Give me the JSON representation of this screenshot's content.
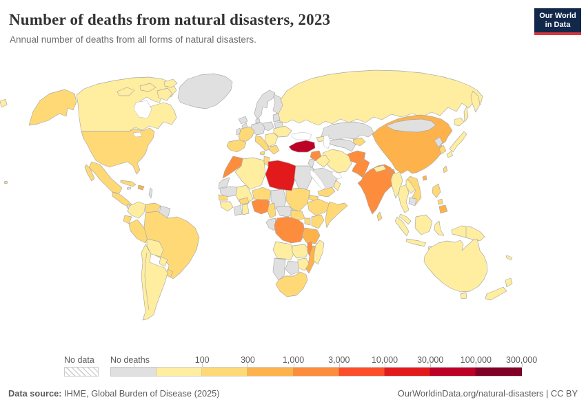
{
  "header": {
    "title": "Number of deaths from natural disasters, 2023",
    "subtitle": "Annual number of deaths from all forms of natural disasters."
  },
  "logo": {
    "line1": "Our World",
    "line2": "in Data",
    "bg": "#12284b",
    "accent": "#d7383d"
  },
  "footer": {
    "source_label": "Data source:",
    "source_rest": " IHME, Global Burden of Disease (2025)",
    "credit": "OurWorldinData.org/natural-disasters | CC BY"
  },
  "legend": {
    "no_data_label": "No data",
    "no_deaths_label": "No deaths",
    "no_deaths_color": "#e0e0e0",
    "bins": [
      {
        "label": "100",
        "color": "#ffeda0"
      },
      {
        "label": "300",
        "color": "#fed976"
      },
      {
        "label": "1,000",
        "color": "#feb24c"
      },
      {
        "label": "3,000",
        "color": "#fd8d3c"
      },
      {
        "label": "10,000",
        "color": "#fc4e2a"
      },
      {
        "label": "30,000",
        "color": "#e31a1c"
      },
      {
        "label": "100,000",
        "color": "#bd0026"
      },
      {
        "label": "300,000",
        "color": "#800026"
      }
    ]
  },
  "chart_data": {
    "type": "choropleth_map",
    "title": "Number of deaths from natural disasters, 2023",
    "unit": "deaths",
    "year": 2023,
    "legend_bins": [
      "No data",
      "No deaths",
      "<100",
      "100-300",
      "300-1,000",
      "1,000-3,000",
      "3,000-10,000",
      "10,000-30,000",
      "30,000-100,000",
      "100,000-300,000"
    ],
    "bin_colors": {
      "No deaths": "#e0e0e0",
      "<100": "#ffeda0",
      "100-300": "#fed976",
      "300-1,000": "#feb24c",
      "1,000-3,000": "#fd8d3c",
      "3,000-10,000": "#fc4e2a",
      "10,000-30,000": "#e31a1c",
      "30,000-100,000": "#bd0026",
      "100,000-300,000": "#800026"
    },
    "readings": {
      "30,000-100,000": [
        "Turkey"
      ],
      "10,000-30,000": [
        "Libya"
      ],
      "1,000-3,000": [
        "Morocco",
        "Syria",
        "Afghanistan",
        "Pakistan",
        "India",
        "Nigeria",
        "Democratic Republic of Congo",
        "Malawi",
        "Bhutan"
      ],
      "300-1,000": [
        "China",
        "Tanzania",
        "Mozambique",
        "Bangladesh",
        "Hispaniola",
        "Mindanao (Philippines)",
        "Hainan (China)"
      ],
      "100-300": [
        "United States",
        "Mexico",
        "Brazil",
        "Peru",
        "Ecuador",
        "Venezuela",
        "Uruguay",
        "Cuba",
        "Central America",
        "France",
        "Spain",
        "Italy",
        "Greece",
        "Niger",
        "Sudan",
        "Senegal",
        "Burkina Faso",
        "Cameroon",
        "Ethiopia",
        "Eritrea",
        "Somalia",
        "Kenya",
        "Uganda",
        "South Sudan",
        "South Africa",
        "Yemen",
        "Vietnam",
        "South Korea",
        "Philippines",
        "Sri Lanka",
        "Kyrgyzstan",
        "Tunisia",
        "Alaska (US)",
        "Taiwan"
      ],
      "<100": [
        "Canada",
        "Russia",
        "Ukraine",
        "Iran",
        "Iraq",
        "Oman",
        "Algeria",
        "Mali",
        "Guinea",
        "Ghana",
        "Angola",
        "Zambia",
        "Zimbabwe",
        "Madagascar",
        "Colombia",
        "Bolivia",
        "Paraguay",
        "Chile",
        "Argentina",
        "Myanmar",
        "Thailand",
        "Laos",
        "Malaysia",
        "Indonesia",
        "Japan",
        "Australia",
        "New Zealand",
        "Papua New Guinea",
        "Nepal",
        "Balkans",
        "Caucasus"
      ],
      "No deaths": [
        "Greenland",
        "Iceland",
        "United Kingdom",
        "Ireland",
        "Norway",
        "Sweden",
        "Finland",
        "Germany",
        "Poland",
        "Belarus",
        "Baltic states",
        "Kazakhstan",
        "Uzbekistan & Turkmenistan",
        "Mongolia",
        "North Korea",
        "Cambodia",
        "Saudi Arabia",
        "Egypt",
        "Jordan & Israel",
        "Chad",
        "Mauritania",
        "Western Sahara",
        "Cote d'Ivoire",
        "Central African Republic",
        "Congo & Gabon",
        "Namibia",
        "Botswana",
        "Guyanas",
        "Panama & Costa Rica",
        "Jamaica",
        "Lesser Antilles"
      ]
    }
  },
  "map": {
    "countries": [
      {
        "id": "russia",
        "name": "Russia",
        "color": "#ffeda0"
      },
      {
        "id": "kamchatka",
        "name": "Russia (Kamchatka)",
        "color": "#ffeda0"
      },
      {
        "id": "sakhalin",
        "name": "Russia (Sakhalin)",
        "color": "#ffeda0"
      },
      {
        "id": "chukotka_sliver",
        "name": "Russia (far east)",
        "color": "#ffeda0"
      },
      {
        "id": "kazakhstan",
        "name": "Kazakhstan",
        "color": "#e0e0e0"
      },
      {
        "id": "uzbek_turkmen",
        "name": "Uzbekistan / Turkmenistan",
        "color": "#e0e0e0"
      },
      {
        "id": "kyrgyz_tajik",
        "name": "Kyrgyzstan / Tajikistan",
        "color": "#fed976"
      },
      {
        "id": "caucasus",
        "name": "Caucasus",
        "color": "#ffeda0"
      },
      {
        "id": "china",
        "name": "China",
        "color": "#feb24c"
      },
      {
        "id": "mongolia",
        "name": "Mongolia",
        "color": "#e0e0e0"
      },
      {
        "id": "nkorea",
        "name": "North Korea",
        "color": "#e0e0e0"
      },
      {
        "id": "skorea",
        "name": "South Korea",
        "color": "#fed976"
      },
      {
        "id": "hokkaido",
        "name": "Japan (Hokkaido)",
        "color": "#ffeda0"
      },
      {
        "id": "honshu",
        "name": "Japan",
        "color": "#ffeda0"
      },
      {
        "id": "kyushu",
        "name": "Japan (Kyushu)",
        "color": "#ffeda0"
      },
      {
        "id": "taiwan",
        "name": "Taiwan",
        "color": "#fed976"
      },
      {
        "id": "hainan",
        "name": "China (Hainan)",
        "color": "#feb24c"
      },
      {
        "id": "india",
        "name": "India",
        "color": "#fd8d3c"
      },
      {
        "id": "nepal",
        "name": "Nepal",
        "color": "#ffeda0"
      },
      {
        "id": "bhutan",
        "name": "Bhutan",
        "color": "#fd8d3c"
      },
      {
        "id": "bangladesh",
        "name": "Bangladesh",
        "color": "#feb24c"
      },
      {
        "id": "srilanka",
        "name": "Sri Lanka",
        "color": "#fed976"
      },
      {
        "id": "pakistan",
        "name": "Pakistan",
        "color": "#fd8d3c"
      },
      {
        "id": "afghanistan",
        "name": "Afghanistan",
        "color": "#fd8d3c"
      },
      {
        "id": "iran",
        "name": "Iran",
        "color": "#ffeda0"
      },
      {
        "id": "iraq",
        "name": "Iraq",
        "color": "#ffeda0"
      },
      {
        "id": "syria",
        "name": "Syria",
        "color": "#fd8d3c"
      },
      {
        "id": "turkey",
        "name": "Turkey",
        "color": "#bd0026"
      },
      {
        "id": "levant",
        "name": "Jordan / Israel",
        "color": "#e0e0e0"
      },
      {
        "id": "saudi",
        "name": "Saudi Arabia",
        "color": "#e0e0e0"
      },
      {
        "id": "yemen",
        "name": "Yemen",
        "color": "#fed976"
      },
      {
        "id": "oman",
        "name": "Oman",
        "color": "#ffeda0"
      },
      {
        "id": "myanmar",
        "name": "Myanmar",
        "color": "#ffeda0"
      },
      {
        "id": "thailand",
        "name": "Thailand",
        "color": "#ffeda0"
      },
      {
        "id": "laos",
        "name": "Laos",
        "color": "#ffeda0"
      },
      {
        "id": "vietnam",
        "name": "Vietnam",
        "color": "#fed976"
      },
      {
        "id": "cambodia",
        "name": "Cambodia",
        "color": "#e0e0e0"
      },
      {
        "id": "malaysia",
        "name": "Malaysia",
        "color": "#ffeda0"
      },
      {
        "id": "borneo",
        "name": "Indonesia (Borneo)",
        "color": "#ffeda0"
      },
      {
        "id": "sumatra",
        "name": "Indonesia (Sumatra)",
        "color": "#ffeda0"
      },
      {
        "id": "java",
        "name": "Indonesia (Java)",
        "color": "#ffeda0"
      },
      {
        "id": "sulawesi",
        "name": "Indonesia (Sulawesi)",
        "color": "#ffeda0"
      },
      {
        "id": "lesser_sunda",
        "name": "Indonesia (Lesser Sunda)",
        "color": "#ffeda0"
      },
      {
        "id": "luzon",
        "name": "Philippines (Luzon)",
        "color": "#fed976"
      },
      {
        "id": "visayas",
        "name": "Philippines (Visayas)",
        "color": "#fed976"
      },
      {
        "id": "mindanao",
        "name": "Philippines (Mindanao)",
        "color": "#feb24c"
      },
      {
        "id": "newguinea",
        "name": "Papua New Guinea / Indonesia",
        "color": "#ffeda0"
      },
      {
        "id": "australia",
        "name": "Australia",
        "color": "#ffeda0"
      },
      {
        "id": "tasmania",
        "name": "Australia (Tasmania)",
        "color": "#ffeda0"
      },
      {
        "id": "nz_north",
        "name": "New Zealand (North Island)",
        "color": "#ffeda0"
      },
      {
        "id": "nz_south",
        "name": "New Zealand (South Island)",
        "color": "#ffeda0"
      },
      {
        "id": "newcaledonia",
        "name": "New Caledonia",
        "color": "#ffeda0"
      },
      {
        "id": "morocco",
        "name": "Morocco",
        "color": "#fd8d3c"
      },
      {
        "id": "wsahara",
        "name": "Western Sahara",
        "color": "#e0e0e0"
      },
      {
        "id": "mauritania",
        "name": "Mauritania",
        "color": "#e0e0e0"
      },
      {
        "id": "mali",
        "name": "Mali",
        "color": "#ffeda0"
      },
      {
        "id": "senegal",
        "name": "Senegal",
        "color": "#fed976"
      },
      {
        "id": "guinea",
        "name": "Guinea",
        "color": "#ffeda0"
      },
      {
        "id": "civ",
        "name": "Cote d'Ivoire",
        "color": "#e0e0e0"
      },
      {
        "id": "ghana",
        "name": "Ghana",
        "color": "#ffeda0"
      },
      {
        "id": "burkina",
        "name": "Burkina Faso",
        "color": "#fed976"
      },
      {
        "id": "nigeria",
        "name": "Nigeria",
        "color": "#fd8d3c"
      },
      {
        "id": "niger",
        "name": "Niger",
        "color": "#fed976"
      },
      {
        "id": "chad",
        "name": "Chad",
        "color": "#e0e0e0"
      },
      {
        "id": "sudan",
        "name": "Sudan",
        "color": "#fed976"
      },
      {
        "id": "algeria",
        "name": "Algeria",
        "color": "#ffeda0"
      },
      {
        "id": "tunisia",
        "name": "Tunisia",
        "color": "#fed976"
      },
      {
        "id": "libya",
        "name": "Libya",
        "color": "#e31a1c"
      },
      {
        "id": "egypt",
        "name": "Egypt",
        "color": "#e0e0e0"
      },
      {
        "id": "eritrea",
        "name": "Eritrea / Djibouti",
        "color": "#fed976"
      },
      {
        "id": "ethiopia",
        "name": "Ethiopia",
        "color": "#fed976"
      },
      {
        "id": "somalia",
        "name": "Somalia",
        "color": "#fed976"
      },
      {
        "id": "cameroon",
        "name": "Cameroon",
        "color": "#fed976"
      },
      {
        "id": "car",
        "name": "Central African Republic",
        "color": "#e0e0e0"
      },
      {
        "id": "ssudan",
        "name": "South Sudan",
        "color": "#fed976"
      },
      {
        "id": "congo",
        "name": "Congo / Gabon",
        "color": "#e0e0e0"
      },
      {
        "id": "drc",
        "name": "Democratic Republic of Congo",
        "color": "#fd8d3c"
      },
      {
        "id": "uganda",
        "name": "Uganda",
        "color": "#fed976"
      },
      {
        "id": "kenya",
        "name": "Kenya",
        "color": "#fed976"
      },
      {
        "id": "tanzania",
        "name": "Tanzania",
        "color": "#feb24c"
      },
      {
        "id": "angola",
        "name": "Angola",
        "color": "#ffeda0"
      },
      {
        "id": "zambia",
        "name": "Zambia",
        "color": "#ffeda0"
      },
      {
        "id": "malawi",
        "name": "Malawi",
        "color": "#fd8d3c"
      },
      {
        "id": "mozambique",
        "name": "Mozambique",
        "color": "#feb24c"
      },
      {
        "id": "zimbabwe",
        "name": "Zimbabwe",
        "color": "#ffeda0"
      },
      {
        "id": "botswana",
        "name": "Botswana",
        "color": "#e0e0e0"
      },
      {
        "id": "namibia",
        "name": "Namibia",
        "color": "#e0e0e0"
      },
      {
        "id": "southafrica",
        "name": "South Africa",
        "color": "#fed976"
      },
      {
        "id": "madagascar",
        "name": "Madagascar",
        "color": "#ffeda0"
      },
      {
        "id": "iceland",
        "name": "Iceland",
        "color": "#e0e0e0"
      },
      {
        "id": "uk",
        "name": "United Kingdom",
        "color": "#e0e0e0"
      },
      {
        "id": "ireland",
        "name": "Ireland",
        "color": "#e0e0e0"
      },
      {
        "id": "scandinavia",
        "name": "Norway / Sweden",
        "color": "#e0e0e0"
      },
      {
        "id": "finland",
        "name": "Finland",
        "color": "#e0e0e0"
      },
      {
        "id": "baltics",
        "name": "Baltic states",
        "color": "#e0e0e0"
      },
      {
        "id": "belarus",
        "name": "Belarus",
        "color": "#e0e0e0"
      },
      {
        "id": "poland",
        "name": "Poland",
        "color": "#e0e0e0"
      },
      {
        "id": "germany",
        "name": "Germany / Central Europe",
        "color": "#e0e0e0"
      },
      {
        "id": "denmark",
        "name": "Denmark",
        "color": "#e0e0e0"
      },
      {
        "id": "france",
        "name": "France",
        "color": "#fed976"
      },
      {
        "id": "iberia",
        "name": "Spain / Portugal",
        "color": "#fed976"
      },
      {
        "id": "italy",
        "name": "Italy",
        "color": "#fed976"
      },
      {
        "id": "sicily",
        "name": "Italy (Sicily)",
        "color": "#fed976"
      },
      {
        "id": "balkans",
        "name": "Balkans",
        "color": "#ffeda0"
      },
      {
        "id": "greece",
        "name": "Greece",
        "color": "#fed976"
      },
      {
        "id": "ukraine",
        "name": "Ukraine",
        "color": "#ffeda0"
      },
      {
        "id": "alaska",
        "name": "United States (Alaska)",
        "color": "#fed976"
      },
      {
        "id": "canada",
        "name": "Canada",
        "color": "#ffeda0"
      },
      {
        "id": "arctic1",
        "name": "Canada (Arctic islands)",
        "color": "#ffeda0"
      },
      {
        "id": "arctic2",
        "name": "Canada (Arctic islands)",
        "color": "#ffeda0"
      },
      {
        "id": "arctic3",
        "name": "Canada (Arctic islands)",
        "color": "#ffeda0"
      },
      {
        "id": "baffin",
        "name": "Canada (Baffin Island)",
        "color": "#ffeda0"
      },
      {
        "id": "greenland",
        "name": "Greenland",
        "color": "#e0e0e0"
      },
      {
        "id": "usa",
        "name": "United States",
        "color": "#fed976"
      },
      {
        "id": "mexico",
        "name": "Mexico",
        "color": "#fed976"
      },
      {
        "id": "baja",
        "name": "Mexico (Baja California)",
        "color": "#fed976"
      },
      {
        "id": "centralamerica",
        "name": "Central America",
        "color": "#fed976"
      },
      {
        "id": "panama",
        "name": "Panama / Costa Rica",
        "color": "#e0e0e0"
      },
      {
        "id": "cuba",
        "name": "Cuba",
        "color": "#fed976"
      },
      {
        "id": "hispaniola",
        "name": "Haiti / Dominican Republic",
        "color": "#feb24c"
      },
      {
        "id": "jamaica",
        "name": "Jamaica",
        "color": "#e0e0e0"
      },
      {
        "id": "antilles",
        "name": "Lesser Antilles",
        "color": "#e0e0e0"
      },
      {
        "id": "hawaii",
        "name": "United States (Hawaii)",
        "color": "#fed976"
      },
      {
        "id": "colombia",
        "name": "Colombia",
        "color": "#ffeda0"
      },
      {
        "id": "venezuela",
        "name": "Venezuela",
        "color": "#fed976"
      },
      {
        "id": "guyanas",
        "name": "Guyana / Suriname",
        "color": "#e0e0e0"
      },
      {
        "id": "ecuador",
        "name": "Ecuador",
        "color": "#fed976"
      },
      {
        "id": "peru",
        "name": "Peru",
        "color": "#fed976"
      },
      {
        "id": "brazil",
        "name": "Brazil",
        "color": "#fed976"
      },
      {
        "id": "bolivia",
        "name": "Bolivia",
        "color": "#ffeda0"
      },
      {
        "id": "paraguay",
        "name": "Paraguay",
        "color": "#ffeda0"
      },
      {
        "id": "uruguay",
        "name": "Uruguay",
        "color": "#fed976"
      },
      {
        "id": "southerncone",
        "name": "Chile / Argentina",
        "color": "#ffeda0"
      }
    ]
  }
}
